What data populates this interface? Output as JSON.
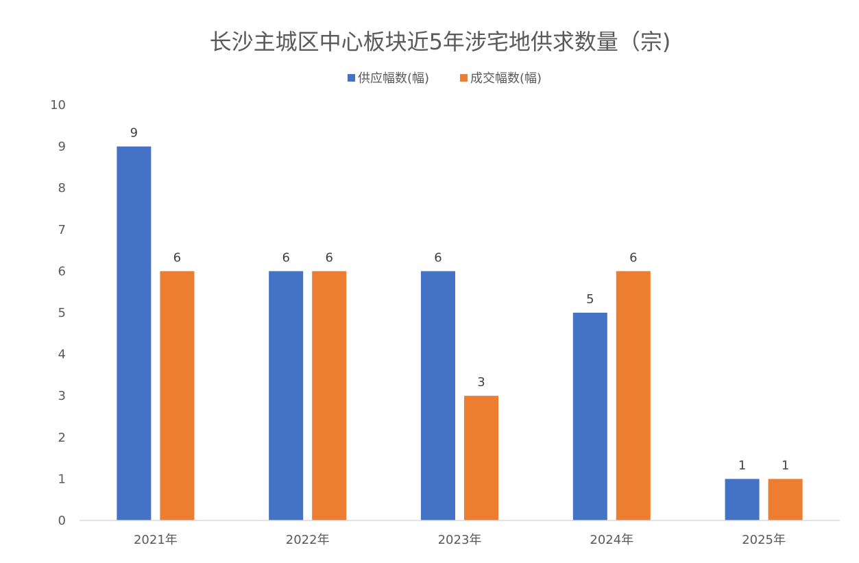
{
  "chart_data": {
    "type": "bar",
    "title": "长沙主城区中心板块近5年涉宅地供求数量（宗)",
    "xlabel": "",
    "ylabel": "",
    "categories": [
      "2021年",
      "2022年",
      "2023年",
      "2024年",
      "2025年"
    ],
    "series": [
      {
        "name": "供应幅数(幅)",
        "values": [
          9,
          6,
          6,
          5,
          1
        ],
        "color": "#4472C4"
      },
      {
        "name": "成交幅数(幅)",
        "values": [
          6,
          6,
          3,
          6,
          1
        ],
        "color": "#ED7D31"
      }
    ],
    "ylim": [
      0,
      10
    ],
    "yticks": [
      0,
      1,
      2,
      3,
      4,
      5,
      6,
      7,
      8,
      9,
      10
    ],
    "grid": false,
    "legend_position": "top",
    "data_labels": true
  }
}
